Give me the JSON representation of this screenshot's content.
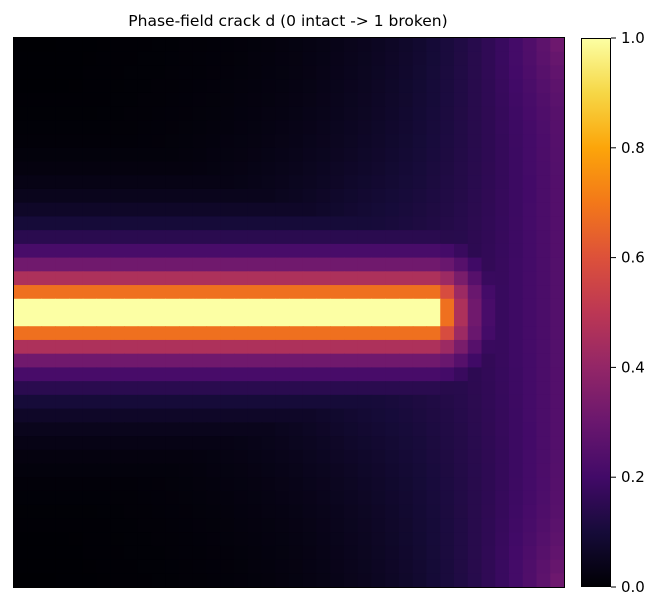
{
  "chart_data": {
    "type": "heatmap",
    "title": "Phase-field crack  d  (0 intact -> 1 broken)",
    "xlabel": "",
    "ylabel": "",
    "colormap": "inferno",
    "value_range": [
      0,
      1
    ],
    "grid_size": [
      40,
      40
    ],
    "axes_ticks": false,
    "colorbar": {
      "position": "right",
      "ticks": [
        0.0,
        0.2,
        0.4,
        0.6,
        0.8,
        1.0
      ],
      "tick_labels": [
        "0.0",
        "0.2",
        "0.4",
        "0.6",
        "0.8",
        "1.0"
      ]
    },
    "field_description": {
      "crack_row_center": 19.5,
      "crack_rows_full": [
        19,
        20
      ],
      "crack_tip_column": 30,
      "crack_value": 1.0,
      "falloff_length_cells": 2.6,
      "background_right_edge_value": 0.22,
      "corner_top_right_value": 0.3,
      "corner_bottom_right_value": 0.3
    }
  }
}
